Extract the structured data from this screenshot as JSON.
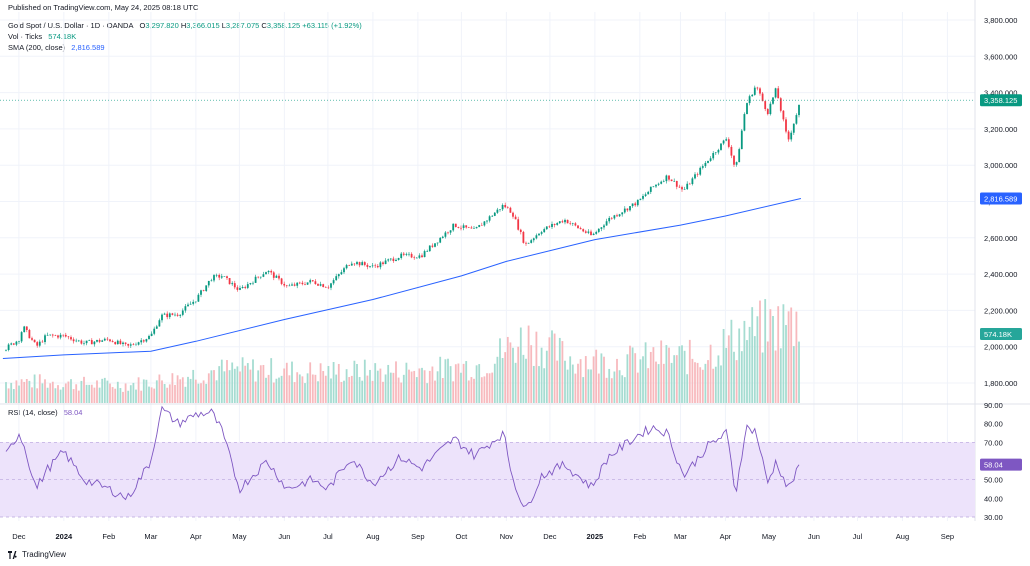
{
  "header": {
    "published": "Published on TradingView.com, May 24, 2025 08:18 UTC",
    "symbol": "Gold Spot / U.S. Dollar · 1D · OANDA",
    "open_label": "O",
    "open": "3,297.820",
    "high_label": "H",
    "high": "3,366.015",
    "low_label": "L",
    "low": "3,287.075",
    "close_label": "C",
    "close": "3,358.125",
    "change": "+63.115 (+1.92%)",
    "vol_label": "Vol · Ticks",
    "vol_value": "574.18K",
    "sma_label": "SMA (200, close)",
    "sma_value": "2,816.589",
    "rsi_label": "RSI (14, close)",
    "rsi_value": "58.04"
  },
  "brand": {
    "name": "TradingView"
  },
  "colors": {
    "up": "#089981",
    "down": "#f23645",
    "sma": "#2962ff",
    "rsi": "#7e57c2",
    "rsi_band": "#ede3fb",
    "grid": "#f0f3fa"
  },
  "chart_data": [
    {
      "type": "candlestick",
      "title": "Gold Spot / U.S. Dollar · 1D · OANDA",
      "x_ticks": [
        "Dec",
        "2024",
        "Feb",
        "Mar",
        "Apr",
        "May",
        "Jun",
        "Jul",
        "Aug",
        "Sep",
        "Oct",
        "Nov",
        "Dec",
        "2025",
        "Feb",
        "Mar",
        "Apr",
        "May",
        "Jun",
        "Jul",
        "Aug",
        "Sep"
      ],
      "y_ticks": [
        "1,800.000",
        "2,000.000",
        "2,200.000",
        "2,400.000",
        "2,600.000",
        "2,800.000",
        "3,000.000",
        "3,200.000",
        "3,400.000",
        "3,600.000",
        "3,800.000"
      ],
      "ylim": [
        1700,
        3850
      ],
      "last_price": "3,358.125",
      "series": [
        {
          "name": "Gold Spot / U.S. Dollar",
          "x": [
            "2023-11-20",
            "2023-12-01",
            "2023-12-04",
            "2023-12-13",
            "2023-12-20",
            "2024-01-01",
            "2024-01-15",
            "2024-02-01",
            "2024-02-14",
            "2024-03-01",
            "2024-03-08",
            "2024-03-20",
            "2024-04-01",
            "2024-04-12",
            "2024-04-19",
            "2024-05-01",
            "2024-05-20",
            "2024-06-03",
            "2024-06-20",
            "2024-07-01",
            "2024-07-17",
            "2024-08-01",
            "2024-08-20",
            "2024-09-03",
            "2024-09-26",
            "2024-10-10",
            "2024-10-30",
            "2024-11-05",
            "2024-11-14",
            "2024-11-25",
            "2024-12-11",
            "2024-12-30",
            "2025-01-10",
            "2025-01-31",
            "2025-02-10",
            "2025-02-20",
            "2025-03-03",
            "2025-03-20",
            "2025-04-02",
            "2025-04-08",
            "2025-04-15",
            "2025-04-22",
            "2025-04-30",
            "2025-05-06",
            "2025-05-14",
            "2025-05-23"
          ],
          "values": [
            1980,
            2040,
            2110,
            2000,
            2060,
            2060,
            2020,
            2040,
            2000,
            2060,
            2170,
            2180,
            2260,
            2380,
            2390,
            2310,
            2420,
            2330,
            2360,
            2330,
            2470,
            2440,
            2500,
            2500,
            2670,
            2640,
            2780,
            2740,
            2560,
            2640,
            2700,
            2610,
            2700,
            2800,
            2880,
            2940,
            2860,
            3030,
            3150,
            2970,
            3330,
            3440,
            3290,
            3420,
            3130,
            3358
          ]
        }
      ]
    },
    {
      "type": "line",
      "series": [
        {
          "name": "SMA (200, close)",
          "x": [
            "2023-11-20",
            "2024-01-01",
            "2024-03-01",
            "2024-04-01",
            "2024-06-01",
            "2024-08-01",
            "2024-10-01",
            "2024-11-01",
            "2025-01-01",
            "2025-03-01",
            "2025-04-01",
            "2025-05-23"
          ],
          "values": [
            1935,
            1955,
            1975,
            2030,
            2150,
            2260,
            2390,
            2470,
            2590,
            2670,
            2720,
            2816.589
          ]
        }
      ]
    },
    {
      "type": "bar",
      "series": [
        {
          "name": "Vol · Ticks",
          "x": [
            "2023-12",
            "2024-01",
            "2024-02",
            "2024-03",
            "2024-04",
            "2024-05",
            "2024-06",
            "2024-07",
            "2024-08",
            "2024-09",
            "2024-10",
            "2024-11",
            "2024-12",
            "2025-01",
            "2025-02",
            "2025-03",
            "2025-04",
            "2025-05"
          ],
          "values": [
            110,
            100,
            95,
            125,
            170,
            175,
            160,
            165,
            165,
            175,
            200,
            340,
            230,
            210,
            240,
            235,
            370,
            420
          ]
        }
      ],
      "last_value": "574.18K"
    },
    {
      "type": "line",
      "title": "RSI (14, close)",
      "y_ticks": [
        "30.00",
        "40.00",
        "50.00",
        "60.00",
        "70.00",
        "80.00",
        "90.00"
      ],
      "ylim": [
        28,
        91
      ],
      "band": [
        30,
        70
      ],
      "last_value": "58.04",
      "series": [
        {
          "name": "RSI (14, close)",
          "x": [
            "2023-11-20",
            "2023-12-01",
            "2023-12-04",
            "2023-12-13",
            "2023-12-20",
            "2024-01-01",
            "2024-01-15",
            "2024-02-01",
            "2024-02-14",
            "2024-03-01",
            "2024-03-08",
            "2024-03-20",
            "2024-04-01",
            "2024-04-12",
            "2024-04-19",
            "2024-05-01",
            "2024-05-20",
            "2024-06-03",
            "2024-06-20",
            "2024-07-01",
            "2024-07-17",
            "2024-08-01",
            "2024-08-20",
            "2024-09-03",
            "2024-09-26",
            "2024-10-10",
            "2024-10-30",
            "2024-11-05",
            "2024-11-14",
            "2024-11-25",
            "2024-12-11",
            "2024-12-30",
            "2025-01-10",
            "2025-01-31",
            "2025-02-10",
            "2025-02-20",
            "2025-03-03",
            "2025-03-20",
            "2025-04-02",
            "2025-04-08",
            "2025-04-15",
            "2025-04-22",
            "2025-04-30",
            "2025-05-06",
            "2025-05-14",
            "2025-05-23"
          ],
          "values": [
            60,
            75,
            70,
            45,
            55,
            65,
            50,
            45,
            40,
            60,
            88,
            80,
            85,
            86,
            76,
            45,
            60,
            45,
            50,
            45,
            62,
            48,
            62,
            56,
            72,
            63,
            75,
            52,
            33,
            52,
            58,
            46,
            62,
            74,
            78,
            75,
            52,
            68,
            75,
            42,
            78,
            76,
            48,
            60,
            45,
            58.04
          ]
        }
      ]
    }
  ]
}
